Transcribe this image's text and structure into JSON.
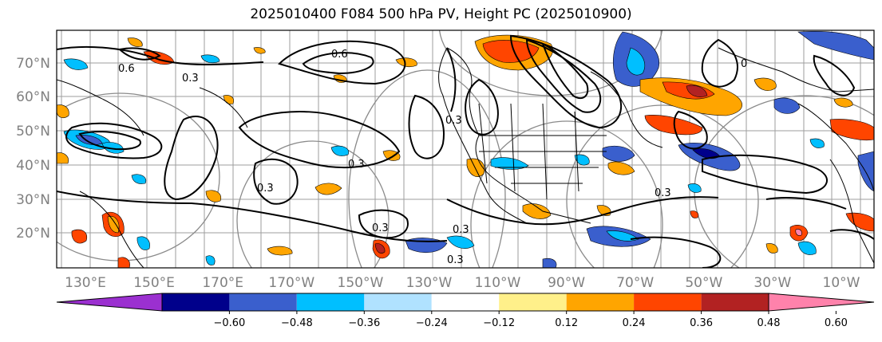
{
  "title": "2025010400 F084 500 hPa PV, Height PC (2025010900)",
  "map": {
    "latitude_labels": [
      "70°N",
      "60°N",
      "50°N",
      "40°N",
      "30°N",
      "20°N"
    ],
    "longitude_labels": [
      "130°E",
      "150°E",
      "170°E",
      "170°W",
      "150°W",
      "130°W",
      "110°W",
      "90°W",
      "70°W",
      "50°W",
      "30°W",
      "10°W"
    ],
    "contour_labels": [
      "0.6",
      "0.3",
      "0.3",
      "0.3",
      "0.3",
      "0.3",
      "0.3",
      "0",
      "0.6",
      "0.3",
      "0.3"
    ]
  },
  "colorbar": {
    "colors": [
      "#9b30d0",
      "#00008b",
      "#3a5fcd",
      "#00bfff",
      "#b0e2ff",
      "#ffffff",
      "#fff08a",
      "#ffa500",
      "#ff4500",
      "#b22222",
      "#ff82ab"
    ],
    "tick_labels": [
      "−0.60",
      "−0.48",
      "−0.36",
      "−0.24",
      "−0.12",
      "0.12",
      "0.24",
      "0.36",
      "0.48",
      "0.60"
    ]
  }
}
